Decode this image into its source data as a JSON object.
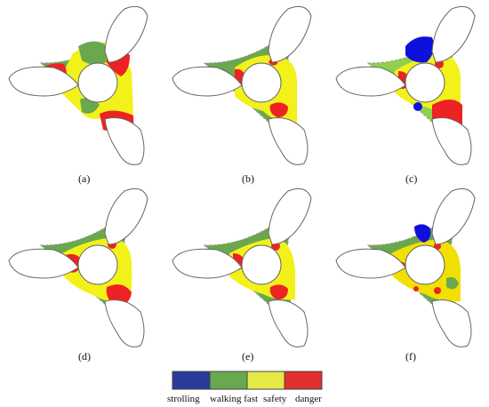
{
  "panels": [
    {
      "id": "a",
      "label": "(a)"
    },
    {
      "id": "b",
      "label": "(b)"
    },
    {
      "id": "c",
      "label": "(c)"
    },
    {
      "id": "d",
      "label": "(d)"
    },
    {
      "id": "e",
      "label": "(e)"
    },
    {
      "id": "f",
      "label": "(f)"
    }
  ],
  "legend": {
    "items": [
      {
        "label": "strolling",
        "color": "#2a3a9a"
      },
      {
        "label": "walking fast",
        "color": "#6aa84f"
      },
      {
        "label": "safety",
        "color": "#e6ea46"
      },
      {
        "label": "danger",
        "color": "#e23030"
      }
    ]
  },
  "colors": {
    "green": "#6aa84f",
    "light_green": "#8fd14f",
    "yellow": "#f2f21a",
    "red": "#ee2222",
    "blue": "#1010dd",
    "outline": "#666666",
    "dashed": "#999999"
  }
}
